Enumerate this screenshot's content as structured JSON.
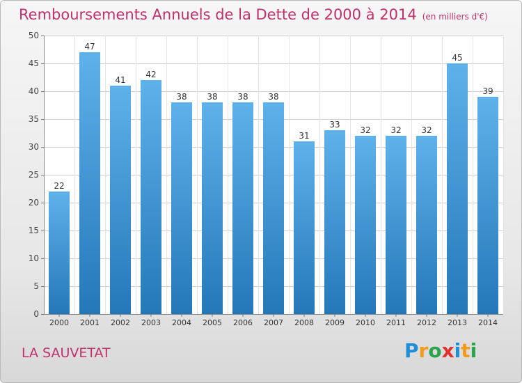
{
  "header": {
    "title": "Remboursements Annuels de la Dette de 2000 à 2014",
    "unit": "(en milliers d'€)"
  },
  "footer": {
    "town": "LA SAUVETAT",
    "brand_letters": [
      {
        "ch": "P",
        "color": "#1e8fd6"
      },
      {
        "ch": "r",
        "color": "#f39a1e"
      },
      {
        "ch": "o",
        "color": "#2aa34a"
      },
      {
        "ch": "x",
        "color": "#e0322e"
      },
      {
        "ch": "i",
        "color": "#1e8fd6"
      },
      {
        "ch": "t",
        "color": "#f39a1e"
      },
      {
        "ch": "i",
        "color": "#2aa34a"
      }
    ]
  },
  "chart_data": {
    "type": "bar",
    "categories": [
      "2000",
      "2001",
      "2002",
      "2003",
      "2004",
      "2005",
      "2006",
      "2007",
      "2008",
      "2009",
      "2010",
      "2011",
      "2012",
      "2013",
      "2014"
    ],
    "values": [
      22,
      47,
      41,
      42,
      38,
      38,
      38,
      38,
      31,
      33,
      32,
      32,
      32,
      45,
      39
    ],
    "ylim": [
      0,
      50
    ],
    "yticks": [
      0,
      5,
      10,
      15,
      20,
      25,
      30,
      35,
      40,
      45,
      50
    ],
    "grid": true,
    "bar_color_top": "#5fb1ea",
    "bar_color_bottom": "#2478b8"
  }
}
